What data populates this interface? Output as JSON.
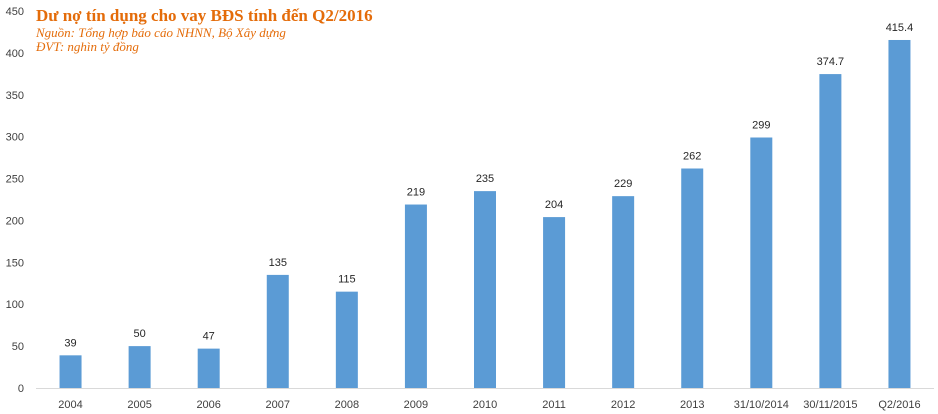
{
  "colors": {
    "bar": "#5b9bd5",
    "title": "#e46c0a",
    "subtitle": "#e46c0a",
    "axis": "#d9d9d9",
    "tick_text": "#404040",
    "label_text": "#262626"
  },
  "chart_data": {
    "type": "bar",
    "title": "Dư nợ tín dụng cho vay BĐS tính đến Q2/2016",
    "source": "Nguồn: Tổng hợp báo cáo NHNN, Bộ Xây dựng",
    "unit": "ĐVT:  nghìn tỷ đồng",
    "categories": [
      "2004",
      "2005",
      "2006",
      "2007",
      "2008",
      "2009",
      "2010",
      "2011",
      "2012",
      "2013",
      "31/10/2014",
      "30/11/2015",
      "Q2/2016"
    ],
    "values": [
      39,
      50,
      47,
      135,
      115,
      219,
      235,
      204,
      229,
      262,
      299,
      374.7,
      415.4
    ],
    "value_labels": [
      "39",
      "50",
      "47",
      "135",
      "115",
      "219",
      "235",
      "204",
      "229",
      "262",
      "299",
      "374.7",
      "415.4"
    ],
    "ylim": [
      0,
      450
    ],
    "yticks": [
      "0",
      "50",
      "100",
      "150",
      "200",
      "250",
      "300",
      "350",
      "400",
      "450"
    ],
    "xlabel": "",
    "ylabel": "",
    "grid": false,
    "legend": "none"
  }
}
